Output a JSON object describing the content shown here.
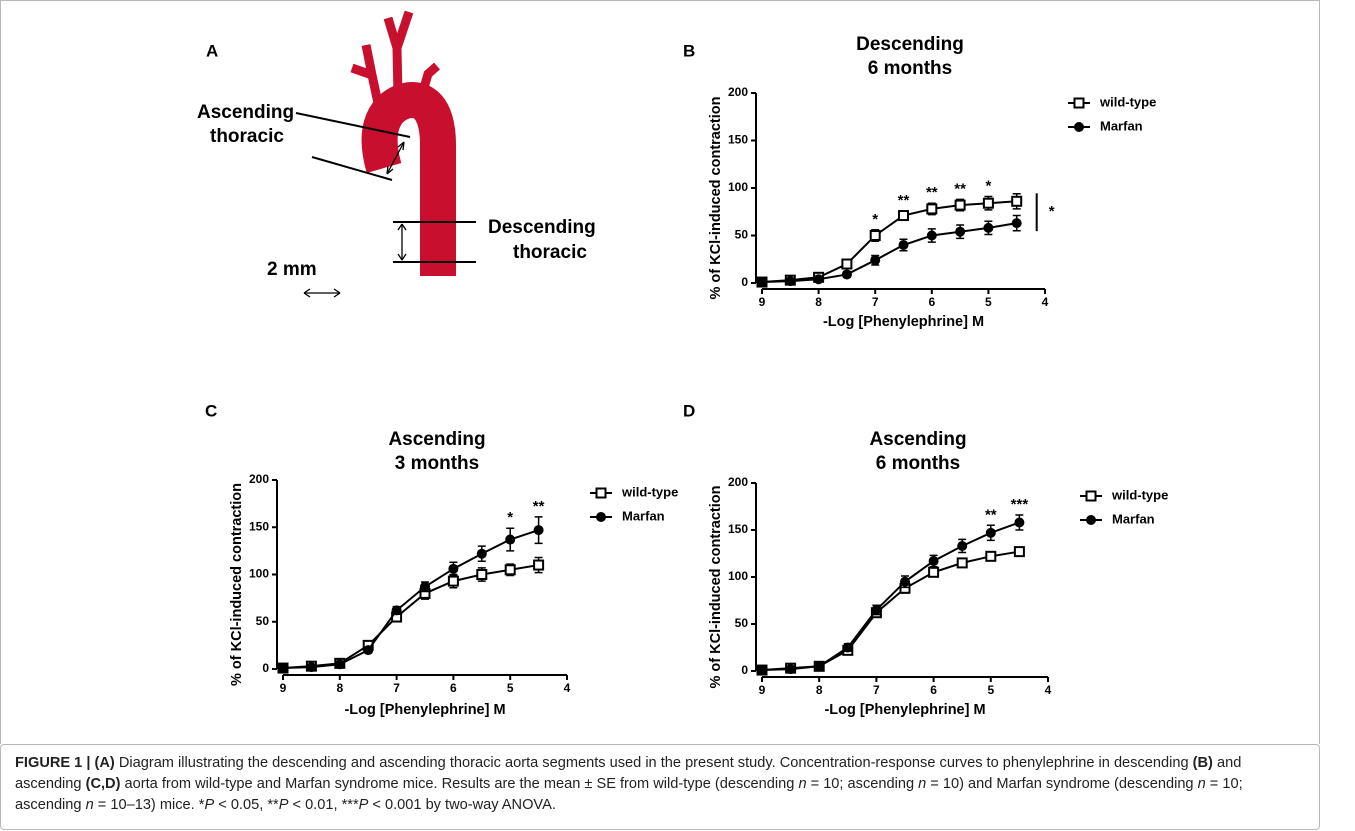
{
  "diagram": {
    "panel": "A",
    "ascending_label": [
      "Ascending",
      "thoracic"
    ],
    "descending_label": [
      "Descending",
      "thoracic"
    ],
    "scale_label": "2 mm"
  },
  "chart_data": [
    {
      "type": "line",
      "panel": "B",
      "title": [
        "Descending",
        "6 months"
      ],
      "x_label": "-Log [Phenylephrine] M",
      "y_label": "% of KCl-induced contraction",
      "x": [
        9,
        8.5,
        8,
        7.5,
        7,
        6.5,
        6,
        5.5,
        5,
        4.5
      ],
      "xlim": [
        9,
        4
      ],
      "xticks": [
        9,
        8,
        7,
        6,
        5,
        4
      ],
      "ylim": [
        0,
        200
      ],
      "yticks": [
        0,
        50,
        100,
        150,
        200
      ],
      "series": [
        {
          "name": "wild-type",
          "color": "#000000",
          "marker": "square-open",
          "values": [
            1,
            3,
            6,
            20,
            50,
            71,
            78,
            82,
            84,
            86
          ],
          "errors": [
            2,
            3,
            3,
            4,
            6,
            5,
            6,
            6,
            7,
            8
          ]
        },
        {
          "name": "Marfan",
          "color": "#000000",
          "marker": "circle",
          "values": [
            1,
            2,
            4,
            9,
            24,
            40,
            50,
            54,
            58,
            63
          ],
          "errors": [
            2,
            2,
            2,
            3,
            5,
            6,
            7,
            7,
            7,
            8
          ]
        }
      ],
      "annotations": [
        {
          "x": 7,
          "label": "*"
        },
        {
          "x": 6.5,
          "label": "**"
        },
        {
          "x": 6,
          "label": "**"
        },
        {
          "x": 5.5,
          "label": "**"
        },
        {
          "x": 5,
          "label": "*"
        }
      ],
      "bracket_label": "*"
    },
    {
      "type": "line",
      "panel": "C",
      "title": [
        "Ascending",
        "3 months"
      ],
      "x_label": "-Log [Phenylephrine] M",
      "y_label": "% of KCl-induced contraction",
      "x": [
        9,
        8.5,
        8,
        7.5,
        7,
        6.5,
        6,
        5.5,
        5,
        4.5
      ],
      "xlim": [
        9,
        4
      ],
      "xticks": [
        9,
        8,
        7,
        6,
        5,
        4
      ],
      "ylim": [
        0,
        200
      ],
      "yticks": [
        0,
        50,
        100,
        150,
        200
      ],
      "series": [
        {
          "name": "wild-type",
          "color": "#000000",
          "marker": "square-open",
          "values": [
            1,
            3,
            6,
            25,
            55,
            80,
            93,
            100,
            105,
            110
          ],
          "errors": [
            2,
            2,
            2,
            3,
            5,
            6,
            7,
            7,
            6,
            8
          ]
        },
        {
          "name": "Marfan",
          "color": "#000000",
          "marker": "circle",
          "values": [
            1,
            2,
            5,
            20,
            62,
            87,
            106,
            122,
            137,
            147
          ],
          "errors": [
            2,
            2,
            2,
            3,
            4,
            5,
            7,
            8,
            12,
            14
          ]
        }
      ],
      "annotations": [
        {
          "x": 5,
          "label": "*"
        },
        {
          "x": 4.5,
          "label": "**"
        }
      ]
    },
    {
      "type": "line",
      "panel": "D",
      "title": [
        "Ascending",
        "6 months"
      ],
      "x_label": "-Log [Phenylephrine] M",
      "y_label": "% of KCl-induced contraction",
      "x": [
        9,
        8.5,
        8,
        7.5,
        7,
        6.5,
        6,
        5.5,
        5,
        4.5
      ],
      "xlim": [
        9,
        4
      ],
      "xticks": [
        9,
        8,
        7,
        6,
        5,
        4
      ],
      "ylim": [
        0,
        200
      ],
      "yticks": [
        0,
        50,
        100,
        150,
        200
      ],
      "series": [
        {
          "name": "wild-type",
          "color": "#000000",
          "marker": "square-open",
          "values": [
            1,
            3,
            5,
            22,
            62,
            88,
            105,
            115,
            122,
            127
          ],
          "errors": [
            2,
            2,
            2,
            4,
            4,
            5,
            4,
            4,
            4,
            4
          ]
        },
        {
          "name": "Marfan",
          "color": "#000000",
          "marker": "circle",
          "values": [
            1,
            2,
            5,
            25,
            65,
            95,
            117,
            133,
            147,
            158
          ],
          "errors": [
            2,
            2,
            2,
            4,
            5,
            6,
            6,
            7,
            8,
            8
          ]
        }
      ],
      "annotations": [
        {
          "x": 5,
          "label": "**"
        },
        {
          "x": 4.5,
          "label": "***"
        }
      ]
    }
  ],
  "caption": [
    "FIGURE 1 | (A)",
    " Diagram illustrating the descending and ascending thoracic aorta segments used in the present study. Concentration-response curves to phenylephrine in descending ",
    "(B)",
    " and ascending ",
    "(C,D)",
    " aorta from wild-type and Marfan syndrome mice. Results are the mean ± SE from wild-type (descending ",
    "n",
    " = 10; ascending ",
    "n",
    " = 10) and Marfan syndrome (descending ",
    "n",
    " = 10; ascending ",
    "n",
    " = 10–13) mice. *",
    "P",
    " < 0.05, **",
    "P",
    " < 0.01, ***",
    "P",
    " < 0.001 by two-way ANOVA."
  ]
}
